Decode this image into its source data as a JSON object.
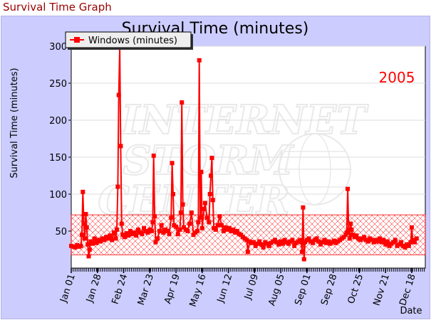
{
  "page": {
    "title": "Survival Time Graph"
  },
  "colors": {
    "background": "#ccccff",
    "series": "#ff0000",
    "title": "#990000",
    "band": "#ff0000"
  },
  "watermark_icon": "internet-storm-center-logo",
  "chart_data": {
    "type": "line",
    "title": "Survival Time (minutes)",
    "annotation": "2005",
    "ylabel": "Survival Time (minutes)",
    "xlabel": "Date",
    "x_range_days": [
      0,
      365
    ],
    "ylim": [
      0,
      300
    ],
    "yticks": [
      50,
      100,
      150,
      200,
      250,
      300
    ],
    "xtick_labels": [
      "Jan 01",
      "Jan 28",
      "Feb 24",
      "Mar 23",
      "Apr 19",
      "May 16",
      "Jun 12",
      "Jul 09",
      "Aug 05",
      "Sep 01",
      "Sep 28",
      "Oct 25",
      "Nov 21",
      "Dec 18"
    ],
    "grid": true,
    "legend_position": "top-left",
    "band": {
      "low": 18,
      "high": 72
    },
    "series": [
      {
        "name": "Windows (minutes)",
        "points": [
          [
            0,
            30
          ],
          [
            2,
            29
          ],
          [
            4,
            28
          ],
          [
            6,
            31
          ],
          [
            8,
            29
          ],
          [
            10,
            30
          ],
          [
            11,
            45
          ],
          [
            12,
            103
          ],
          [
            13,
            60
          ],
          [
            14,
            40
          ],
          [
            15,
            73
          ],
          [
            16,
            55
          ],
          [
            17,
            32
          ],
          [
            18,
            16
          ],
          [
            19,
            25
          ],
          [
            20,
            36
          ],
          [
            22,
            33
          ],
          [
            24,
            40
          ],
          [
            26,
            34
          ],
          [
            28,
            38
          ],
          [
            30,
            36
          ],
          [
            32,
            40
          ],
          [
            34,
            38
          ],
          [
            36,
            42
          ],
          [
            38,
            40
          ],
          [
            40,
            44
          ],
          [
            42,
            38
          ],
          [
            44,
            48
          ],
          [
            46,
            40
          ],
          [
            47,
            52
          ],
          [
            48,
            110
          ],
          [
            49,
            234
          ],
          [
            50,
            298
          ],
          [
            51,
            165
          ],
          [
            52,
            60
          ],
          [
            53,
            45
          ],
          [
            55,
            42
          ],
          [
            57,
            47
          ],
          [
            59,
            44
          ],
          [
            61,
            50
          ],
          [
            63,
            46
          ],
          [
            65,
            48
          ],
          [
            67,
            44
          ],
          [
            69,
            52
          ],
          [
            71,
            48
          ],
          [
            73,
            46
          ],
          [
            75,
            54
          ],
          [
            77,
            50
          ],
          [
            79,
            48
          ],
          [
            81,
            52
          ],
          [
            83,
            50
          ],
          [
            84,
            62
          ],
          [
            85,
            152
          ],
          [
            86,
            70
          ],
          [
            87,
            35
          ],
          [
            89,
            40
          ],
          [
            91,
            50
          ],
          [
            93,
            58
          ],
          [
            95,
            48
          ],
          [
            97,
            52
          ],
          [
            99,
            50
          ],
          [
            101,
            46
          ],
          [
            103,
            68
          ],
          [
            104,
            142
          ],
          [
            105,
            100
          ],
          [
            106,
            58
          ],
          [
            108,
            56
          ],
          [
            110,
            46
          ],
          [
            112,
            52
          ],
          [
            113,
            75
          ],
          [
            114,
            224
          ],
          [
            115,
            86
          ],
          [
            116,
            55
          ],
          [
            118,
            52
          ],
          [
            120,
            50
          ],
          [
            122,
            60
          ],
          [
            124,
            75
          ],
          [
            126,
            45
          ],
          [
            128,
            48
          ],
          [
            130,
            50
          ],
          [
            131,
            62
          ],
          [
            132,
            281
          ],
          [
            133,
            68
          ],
          [
            134,
            130
          ],
          [
            135,
            54
          ],
          [
            137,
            80
          ],
          [
            138,
            88
          ],
          [
            140,
            68
          ],
          [
            142,
            62
          ],
          [
            143,
            100
          ],
          [
            144,
            125
          ],
          [
            145,
            149
          ],
          [
            146,
            92
          ],
          [
            147,
            54
          ],
          [
            149,
            52
          ],
          [
            151,
            58
          ],
          [
            153,
            70
          ],
          [
            155,
            58
          ],
          [
            157,
            50
          ],
          [
            159,
            55
          ],
          [
            161,
            52
          ],
          [
            163,
            54
          ],
          [
            165,
            50
          ],
          [
            167,
            52
          ],
          [
            169,
            48
          ],
          [
            171,
            50
          ],
          [
            173,
            46
          ],
          [
            175,
            45
          ],
          [
            177,
            42
          ],
          [
            179,
            40
          ],
          [
            181,
            38
          ],
          [
            182,
            22
          ],
          [
            184,
            36
          ],
          [
            186,
            34
          ],
          [
            188,
            35
          ],
          [
            190,
            30
          ],
          [
            192,
            33
          ],
          [
            194,
            36
          ],
          [
            196,
            32
          ],
          [
            198,
            28
          ],
          [
            200,
            35
          ],
          [
            202,
            33
          ],
          [
            204,
            30
          ],
          [
            206,
            34
          ],
          [
            208,
            36
          ],
          [
            210,
            38
          ],
          [
            212,
            35
          ],
          [
            214,
            32
          ],
          [
            216,
            36
          ],
          [
            218,
            33
          ],
          [
            220,
            38
          ],
          [
            222,
            35
          ],
          [
            224,
            33
          ],
          [
            226,
            36
          ],
          [
            228,
            38
          ],
          [
            230,
            30
          ],
          [
            232,
            34
          ],
          [
            234,
            36
          ],
          [
            236,
            38
          ],
          [
            237,
            35
          ],
          [
            238,
            22
          ],
          [
            239,
            82
          ],
          [
            240,
            12
          ],
          [
            241,
            35
          ],
          [
            243,
            38
          ],
          [
            245,
            40
          ],
          [
            247,
            36
          ],
          [
            249,
            34
          ],
          [
            251,
            38
          ],
          [
            253,
            40
          ],
          [
            255,
            36
          ],
          [
            257,
            32
          ],
          [
            259,
            35
          ],
          [
            261,
            38
          ],
          [
            263,
            34
          ],
          [
            265,
            36
          ],
          [
            267,
            33
          ],
          [
            269,
            35
          ],
          [
            271,
            37
          ],
          [
            273,
            34
          ],
          [
            275,
            36
          ],
          [
            277,
            38
          ],
          [
            279,
            40
          ],
          [
            281,
            42
          ],
          [
            283,
            45
          ],
          [
            284,
            48
          ],
          [
            285,
            107
          ],
          [
            286,
            52
          ],
          [
            287,
            40
          ],
          [
            288,
            60
          ],
          [
            289,
            52
          ],
          [
            290,
            45
          ],
          [
            292,
            42
          ],
          [
            294,
            44
          ],
          [
            296,
            40
          ],
          [
            298,
            38
          ],
          [
            300,
            40
          ],
          [
            302,
            42
          ],
          [
            304,
            38
          ],
          [
            306,
            36
          ],
          [
            308,
            40
          ],
          [
            310,
            38
          ],
          [
            312,
            35
          ],
          [
            314,
            38
          ],
          [
            316,
            36
          ],
          [
            318,
            40
          ],
          [
            320,
            35
          ],
          [
            322,
            38
          ],
          [
            324,
            32
          ],
          [
            326,
            36
          ],
          [
            328,
            30
          ],
          [
            330,
            33
          ],
          [
            332,
            35
          ],
          [
            334,
            38
          ],
          [
            336,
            30
          ],
          [
            338,
            32
          ],
          [
            340,
            35
          ],
          [
            342,
            30
          ],
          [
            344,
            28
          ],
          [
            346,
            32
          ],
          [
            348,
            30
          ],
          [
            350,
            35
          ],
          [
            351,
            55
          ],
          [
            352,
            38
          ],
          [
            354,
            35
          ],
          [
            356,
            40
          ]
        ]
      }
    ]
  }
}
